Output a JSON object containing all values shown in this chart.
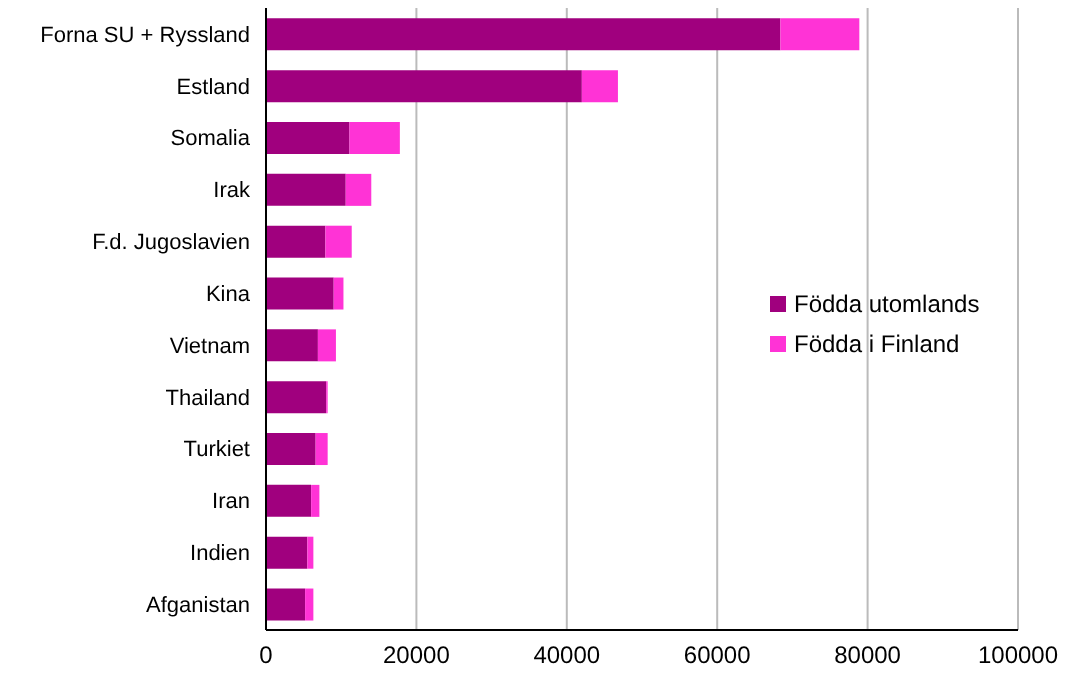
{
  "chart_data": {
    "type": "bar",
    "orientation": "horizontal",
    "stacked": true,
    "categories": [
      "Forna SU + Ryssland",
      "Estland",
      "Somalia",
      "Irak",
      "F.d. Jugoslavien",
      "Kina",
      "Vietnam",
      "Thailand",
      "Turkiet",
      "Iran",
      "Indien",
      "Afganistan"
    ],
    "series": [
      {
        "name": "Födda utomlands",
        "color": "#a0007e",
        "values": [
          68400,
          42000,
          11100,
          10600,
          7900,
          9000,
          6900,
          8000,
          6600,
          6000,
          5500,
          5200
        ]
      },
      {
        "name": "Födda i Finland",
        "color": "#ff33d6",
        "values": [
          10500,
          4800,
          6700,
          3400,
          3500,
          1300,
          2400,
          200,
          1600,
          1100,
          800,
          1100
        ]
      }
    ],
    "xlim": [
      0,
      100000
    ],
    "xticks": [
      0,
      20000,
      40000,
      60000,
      80000,
      100000
    ],
    "grid": "x",
    "legend": "right"
  }
}
